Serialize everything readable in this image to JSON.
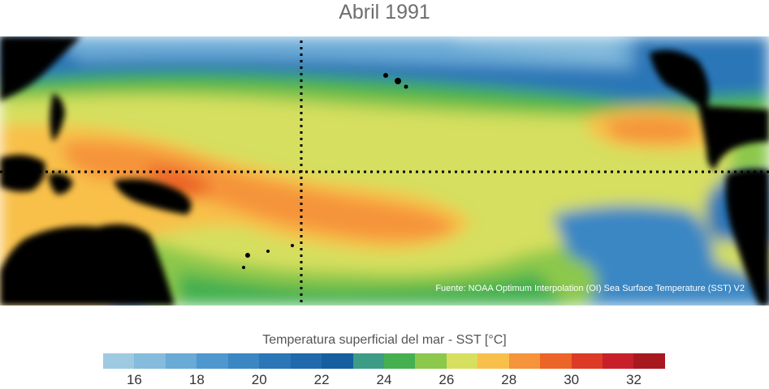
{
  "title": "Abril 1991",
  "source": "Fuente: NOAA Optimum Interpolation (OI) Sea Surface Temperature (SST) V2",
  "colorbar": {
    "label": "Temperatura superficial del mar - SST  [°C]",
    "min": 15,
    "max": 33,
    "colors": [
      "#9ecae1",
      "#85bbdc",
      "#6aaad6",
      "#4f98cf",
      "#3a87c4",
      "#2a76b7",
      "#1f69ac",
      "#155ea0",
      "#3d9c86",
      "#45b050",
      "#8cc84b",
      "#d6df5e",
      "#f8c04a",
      "#f5943a",
      "#ec6427",
      "#dc3b26",
      "#c8202a",
      "#a8191f"
    ],
    "ticks": [
      "16",
      "18",
      "20",
      "22",
      "24",
      "26",
      "28",
      "30",
      "32"
    ]
  },
  "colors": {
    "land": "#000000",
    "dotted_lines": "#000000"
  }
}
